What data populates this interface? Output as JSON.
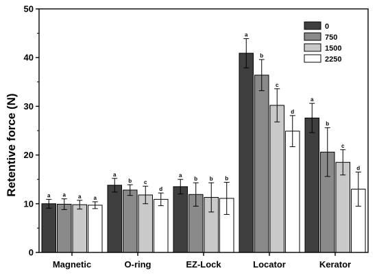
{
  "chart_data": {
    "type": "bar",
    "ylabel": "Retentive force (N)",
    "xlabel": "",
    "ylim": [
      0,
      50
    ],
    "yticks": [
      0,
      10,
      20,
      30,
      40,
      50
    ],
    "categories": [
      "Magnetic",
      "O-ring",
      "EZ-Lock",
      "Locator",
      "Kerator"
    ],
    "legend_position": "top-right",
    "series": [
      {
        "name": "0",
        "color": "#3f3f3f",
        "values": [
          10.0,
          13.8,
          13.5,
          40.9,
          27.6
        ],
        "errors": [
          0.9,
          1.4,
          1.5,
          3.0,
          3.0
        ],
        "letters": [
          "a",
          "a",
          "a",
          "a",
          "a"
        ]
      },
      {
        "name": "750",
        "color": "#8a8a8a",
        "values": [
          9.9,
          12.8,
          11.9,
          36.4,
          20.6
        ],
        "errors": [
          1.1,
          1.1,
          2.4,
          3.2,
          5.0
        ],
        "letters": [
          "a",
          "b",
          "b",
          "b",
          "b"
        ]
      },
      {
        "name": "1500",
        "color": "#c9c9c9",
        "values": [
          9.8,
          11.8,
          11.3,
          30.2,
          18.5
        ],
        "errors": [
          0.9,
          1.8,
          3.0,
          3.4,
          2.6
        ],
        "letters": [
          "a",
          "c",
          "b",
          "c",
          "c"
        ]
      },
      {
        "name": "2250",
        "color": "#ffffff",
        "values": [
          9.7,
          10.9,
          11.1,
          24.9,
          13.0
        ],
        "errors": [
          0.7,
          1.3,
          3.3,
          3.2,
          3.5
        ],
        "letters": [
          "a",
          "d",
          "b",
          "d",
          "d"
        ]
      }
    ]
  }
}
